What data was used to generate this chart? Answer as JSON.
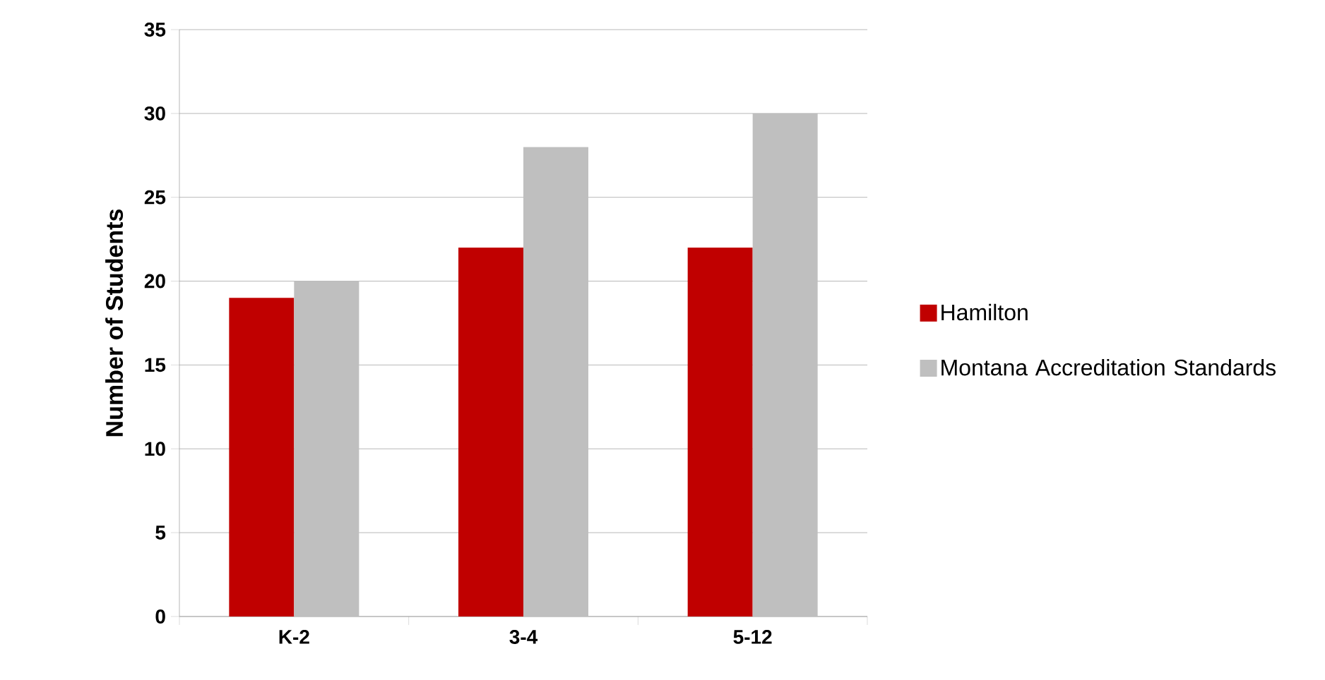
{
  "chart_data": {
    "type": "bar",
    "ylabel": "Number of Students",
    "categories": [
      "K-2",
      "3-4",
      "5-12"
    ],
    "series": [
      {
        "name": "Hamilton",
        "color": "#c00000",
        "values": [
          19,
          22,
          22
        ]
      },
      {
        "name": "Montana Accreditation Standards",
        "color": "#bfbfbf",
        "values": [
          20,
          28,
          30
        ]
      }
    ],
    "ylim": [
      0,
      35
    ],
    "yticks": [
      0,
      5,
      10,
      15,
      20,
      25,
      30,
      35
    ],
    "grid": "y",
    "legend": "right"
  }
}
